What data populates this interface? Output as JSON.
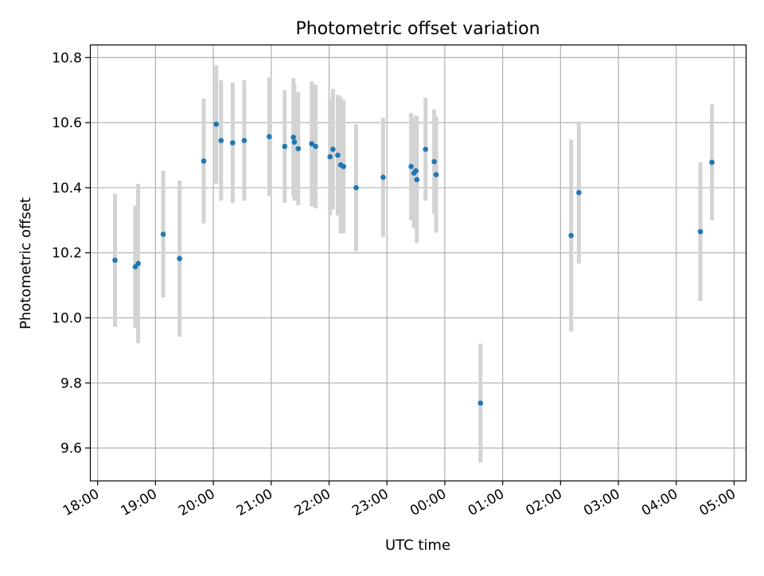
{
  "chart_data": {
    "type": "scatter",
    "title": "Photometric offset variation",
    "xlabel": "UTC time",
    "ylabel": "Photometric offset",
    "xlim": [
      "17:52",
      "05:12"
    ],
    "ylim": [
      9.5,
      10.84
    ],
    "x_ticks": [
      "18:00",
      "19:00",
      "20:00",
      "21:00",
      "22:00",
      "23:00",
      "00:00",
      "01:00",
      "02:00",
      "03:00",
      "04:00",
      "05:00"
    ],
    "y_ticks": [
      "9.6",
      "9.8",
      "10.0",
      "10.2",
      "10.4",
      "10.6",
      "10.8"
    ],
    "grid": true,
    "colors": {
      "point": "#1f77b4",
      "errorbar": "#d3d3d3",
      "grid": "#b0b0b0"
    },
    "points": [
      {
        "x": "18:18",
        "y": 10.177,
        "err": 0.205
      },
      {
        "x": "18:39",
        "y": 10.157,
        "err": 0.188
      },
      {
        "x": "18:42",
        "y": 10.167,
        "err": 0.245
      },
      {
        "x": "19:08",
        "y": 10.257,
        "err": 0.195
      },
      {
        "x": "19:25",
        "y": 10.182,
        "err": 0.24
      },
      {
        "x": "19:50",
        "y": 10.482,
        "err": 0.192
      },
      {
        "x": "20:03",
        "y": 10.595,
        "err": 0.182
      },
      {
        "x": "20:08",
        "y": 10.545,
        "err": 0.185
      },
      {
        "x": "20:20",
        "y": 10.538,
        "err": 0.185
      },
      {
        "x": "20:32",
        "y": 10.545,
        "err": 0.185
      },
      {
        "x": "20:58",
        "y": 10.557,
        "err": 0.182
      },
      {
        "x": "21:14",
        "y": 10.527,
        "err": 0.173
      },
      {
        "x": "21:23",
        "y": 10.555,
        "err": 0.182
      },
      {
        "x": "21:24",
        "y": 10.54,
        "err": 0.18
      },
      {
        "x": "21:28",
        "y": 10.52,
        "err": 0.173
      },
      {
        "x": "21:42",
        "y": 10.535,
        "err": 0.192
      },
      {
        "x": "21:46",
        "y": 10.527,
        "err": 0.19
      },
      {
        "x": "22:01",
        "y": 10.495,
        "err": 0.18
      },
      {
        "x": "22:04",
        "y": 10.518,
        "err": 0.185
      },
      {
        "x": "22:09",
        "y": 10.5,
        "err": 0.185
      },
      {
        "x": "22:12",
        "y": 10.47,
        "err": 0.21
      },
      {
        "x": "22:15",
        "y": 10.465,
        "err": 0.205
      },
      {
        "x": "22:28",
        "y": 10.4,
        "err": 0.195
      },
      {
        "x": "22:56",
        "y": 10.432,
        "err": 0.183
      },
      {
        "x": "23:25",
        "y": 10.465,
        "err": 0.165
      },
      {
        "x": "23:28",
        "y": 10.445,
        "err": 0.17
      },
      {
        "x": "23:30",
        "y": 10.452,
        "err": 0.17
      },
      {
        "x": "23:31",
        "y": 10.425,
        "err": 0.195
      },
      {
        "x": "23:40",
        "y": 10.518,
        "err": 0.158
      },
      {
        "x": "23:49",
        "y": 10.48,
        "err": 0.16
      },
      {
        "x": "23:51",
        "y": 10.44,
        "err": 0.178
      },
      {
        "x": "00:37",
        "y": 9.738,
        "err": 0.183
      },
      {
        "x": "02:11",
        "y": 10.253,
        "err": 0.295
      },
      {
        "x": "02:19",
        "y": 10.385,
        "err": 0.218
      },
      {
        "x": "04:25",
        "y": 10.265,
        "err": 0.213
      },
      {
        "x": "04:37",
        "y": 10.478,
        "err": 0.178
      }
    ]
  }
}
